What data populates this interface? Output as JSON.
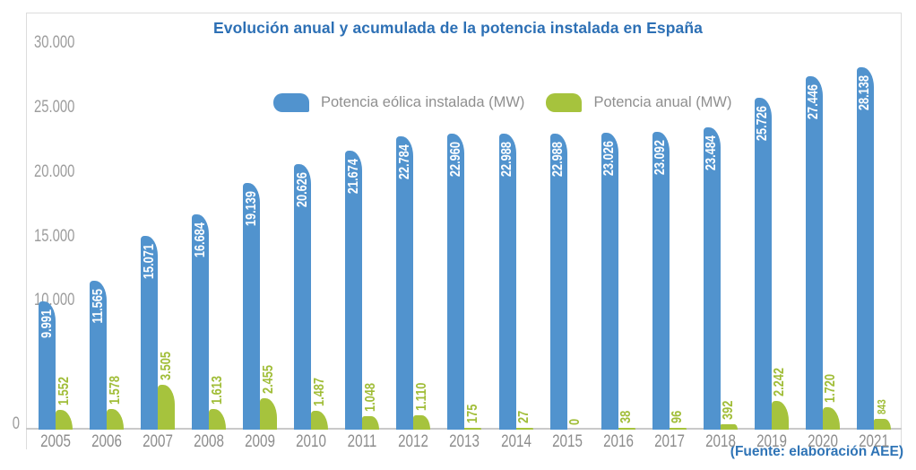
{
  "title": "Evolución anual y acumulada de la potencia instalada en España",
  "source_note": "(Fuente: elaboración AEE)",
  "legend": {
    "cumulative": "Potencia eólica instalada (MW)",
    "annual": "Potencia anual (MW)"
  },
  "colors": {
    "cumulative_bar": "#5193ce",
    "annual_bar": "#a6c33d",
    "annual_label_text": "#a0bd37",
    "cumulative_label_text": "#ffffff",
    "title_text": "#2d70b5",
    "source_text": "#2f74b6",
    "tick_text": "#9d9d9d",
    "year_text": "#8d8d8d",
    "legend_text": "#8f8f8f",
    "axis_line": "#c9c9c9",
    "panel_border": "#dcdcdc"
  },
  "y_axis": {
    "ticks": [
      {
        "label": "30.000",
        "value": 30000
      },
      {
        "label": "25.000",
        "value": 25000
      },
      {
        "label": "20.000",
        "value": 20000
      },
      {
        "label": "15.000",
        "value": 15000
      },
      {
        "label": "10.000",
        "value": 10000
      },
      {
        "label": "0",
        "value": 0
      }
    ]
  },
  "chart_data": {
    "type": "bar",
    "title": "Evolución anual y acumulada de la potencia instalada en España",
    "categories": [
      "2005",
      "2006",
      "2007",
      "2008",
      "2009",
      "2010",
      "2011",
      "2012",
      "2013",
      "2014",
      "2015",
      "2016",
      "2017",
      "2018",
      "2019",
      "2020",
      "2021"
    ],
    "series": [
      {
        "name": "Potencia eólica instalada (MW)",
        "color": "#5193ce",
        "values": [
          9991,
          11565,
          15071,
          16684,
          19139,
          20626,
          21674,
          22784,
          22960,
          22988,
          22988,
          23026,
          23092,
          23484,
          25726,
          27446,
          28138
        ],
        "labels": [
          "9.991",
          "11.565",
          "15.071",
          "16.684",
          "19.139",
          "20.626",
          "21.674",
          "22.784",
          "22.960",
          "22.988",
          "22.988",
          "23.026",
          "23.092",
          "23.484",
          "25.726",
          "27.446",
          "28.138"
        ]
      },
      {
        "name": "Potencia anual (MW)",
        "color": "#a6c33d",
        "values": [
          1552,
          1578,
          3505,
          1613,
          2455,
          1487,
          1048,
          1110,
          175,
          27,
          0,
          38,
          96,
          392,
          2242,
          1720,
          843
        ],
        "labels": [
          "1.552",
          "1.578",
          "3.505",
          "1.613",
          "2.455",
          "1.487",
          "1.048",
          "1.110",
          "175",
          "27",
          "0",
          "38",
          "96",
          "392",
          "2.242",
          "1.720",
          "843"
        ],
        "small_label_indices": [
          16
        ]
      }
    ],
    "ylim": [
      0,
      30000
    ],
    "xlabel": "",
    "ylabel": "",
    "grid": false,
    "legend_position": "top"
  }
}
